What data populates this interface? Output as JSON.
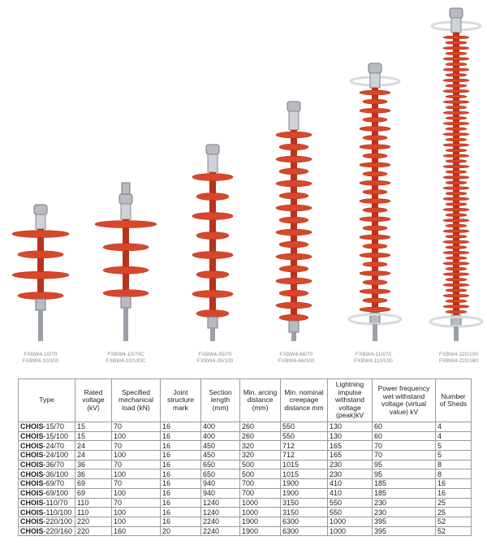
{
  "colors": {
    "insulator_red": "#d9472a",
    "insulator_dark": "#b8331c",
    "metal": "#b8bcc2",
    "grading_ring": "#d8dadd"
  },
  "insulators": [
    {
      "caption": [
        "FXBW4-10/70",
        "FXBW4-10/100"
      ],
      "sheds": 4
    },
    {
      "caption": [
        "FXBW4-10/70C",
        "FXBW4-10/100C"
      ],
      "sheds": 4
    },
    {
      "caption": [
        "FXBW4-35/70",
        "FXBW4-35/100"
      ],
      "sheds": 8
    },
    {
      "caption": [
        "FXBW4-66/70",
        "FXBW4-66/100"
      ],
      "sheds": 16
    },
    {
      "caption": [
        "FXBW4-110/70",
        "FXBW4-110/100"
      ],
      "sheds": 25
    },
    {
      "caption": [
        "FXBW4-220/100",
        "FXBW4-220/160"
      ],
      "sheds": 52
    }
  ],
  "table": {
    "headers": [
      "Type",
      "Rated voltage (kV)",
      "Specified mechanical load (kN)",
      "Joint structure mark",
      "Section length (mm)",
      "Min. arcing distance (mm)",
      "Min. nominal creepage distance mm",
      "Lightning impulse withstand voltage (peak)kV",
      "Power frequency wet withstand voltage (virtual value) kV",
      "Number of Sheds"
    ],
    "rows": [
      {
        "prefix": "CHOIS",
        "suffix": "-15/70",
        "cells": [
          "15",
          "70",
          "16",
          "400",
          "260",
          "550",
          "130",
          "60",
          "4"
        ]
      },
      {
        "prefix": "CHOIS",
        "suffix": "-15/100",
        "cells": [
          "15",
          "100",
          "16",
          "400",
          "260",
          "550",
          "130",
          "60",
          "4"
        ]
      },
      {
        "prefix": "CHOIS",
        "suffix": "-24/70",
        "cells": [
          "24",
          "70",
          "16",
          "450",
          "320",
          "712",
          "165",
          "70",
          "5"
        ]
      },
      {
        "prefix": "CHOIS",
        "suffix": "-24/100",
        "cells": [
          "24",
          "100",
          "16",
          "450",
          "320",
          "712",
          "165",
          "70",
          "5"
        ]
      },
      {
        "prefix": "CHOIS",
        "suffix": "-36/70",
        "cells": [
          "36",
          "70",
          "16",
          "650",
          "500",
          "1015",
          "230",
          "95",
          "8"
        ]
      },
      {
        "prefix": "CHOIS",
        "suffix": "-36/100",
        "cells": [
          "36",
          "100",
          "16",
          "650",
          "500",
          "1015",
          "230",
          "95",
          "8"
        ]
      },
      {
        "prefix": "CHOIS",
        "suffix": "-69/70",
        "cells": [
          "69",
          "70",
          "16",
          "940",
          "700",
          "1900",
          "410",
          "185",
          "16"
        ]
      },
      {
        "prefix": "CHOIS",
        "suffix": "-69/100",
        "cells": [
          "69",
          "100",
          "16",
          "940",
          "700",
          "1900",
          "410",
          "185",
          "16"
        ]
      },
      {
        "prefix": "CHOIS",
        "suffix": "-110/70",
        "cells": [
          "110",
          "70",
          "16",
          "1240",
          "1000",
          "3150",
          "550",
          "230",
          "25"
        ]
      },
      {
        "prefix": "CHOIS",
        "suffix": "-110/100",
        "cells": [
          "110",
          "100",
          "16",
          "1240",
          "1000",
          "3150",
          "550",
          "230",
          "25"
        ]
      },
      {
        "prefix": "CHOIS",
        "suffix": "-220/100",
        "cells": [
          "220",
          "100",
          "16",
          "2240",
          "1900",
          "6300",
          "1000",
          "395",
          "52"
        ]
      },
      {
        "prefix": "CHOIS",
        "suffix": "-220/160",
        "cells": [
          "220",
          "160",
          "20",
          "2240",
          "1900",
          "6300",
          "1000",
          "395",
          "52"
        ]
      }
    ]
  }
}
